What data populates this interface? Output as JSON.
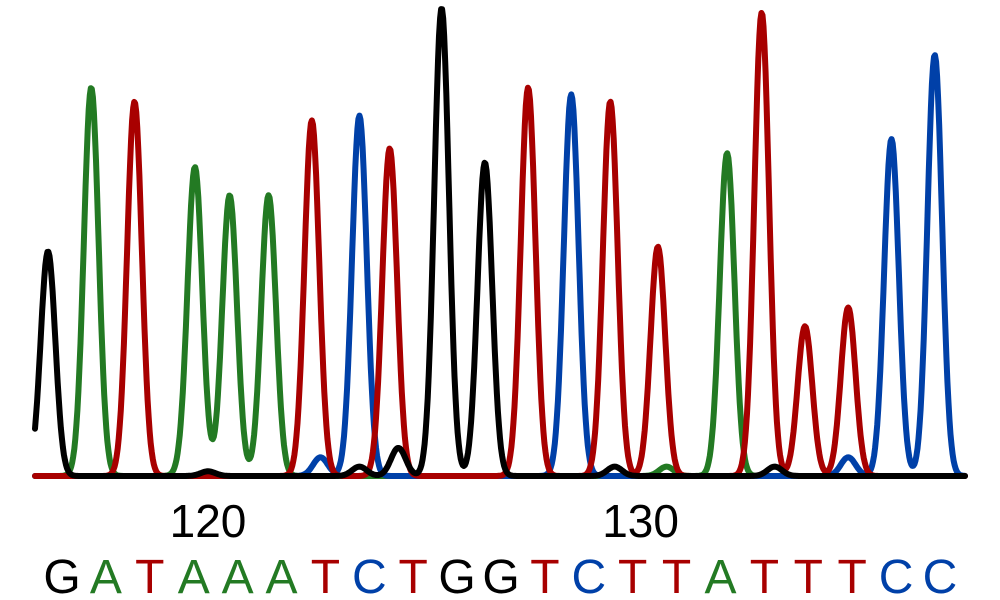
{
  "chart_data": {
    "type": "line",
    "title": "",
    "xlabel": "",
    "ylabel": "",
    "x_ticks": [
      {
        "position": 120,
        "label": "120"
      },
      {
        "position": 130,
        "label": "130"
      }
    ],
    "bases": [
      {
        "base": "G",
        "channel": "G"
      },
      {
        "base": "A",
        "channel": "A"
      },
      {
        "base": "T",
        "channel": "T"
      },
      {
        "base": "A",
        "channel": "A"
      },
      {
        "base": "A",
        "channel": "A"
      },
      {
        "base": "A",
        "channel": "A"
      },
      {
        "base": "T",
        "channel": "T"
      },
      {
        "base": "C",
        "channel": "C"
      },
      {
        "base": "T",
        "channel": "T"
      },
      {
        "base": "G",
        "channel": "G"
      },
      {
        "base": "G",
        "channel": "G"
      },
      {
        "base": "T",
        "channel": "T"
      },
      {
        "base": "C",
        "channel": "C"
      },
      {
        "base": "T",
        "channel": "T"
      },
      {
        "base": "T",
        "channel": "T"
      },
      {
        "base": "A",
        "channel": "A"
      },
      {
        "base": "T",
        "channel": "T"
      },
      {
        "base": "T",
        "channel": "T"
      },
      {
        "base": "T",
        "channel": "T"
      },
      {
        "base": "C",
        "channel": "C"
      },
      {
        "base": "C",
        "channel": "C"
      }
    ],
    "channel_colors": {
      "A": "#237a23",
      "C": "#0040a8",
      "G": "#000000",
      "T": "#a80000"
    },
    "series": [
      {
        "channel": "G",
        "peaks": [
          {
            "x": 116.3,
            "y": 0.48
          },
          {
            "x": 120.0,
            "y": 0.01
          },
          {
            "x": 123.5,
            "y": 0.02
          },
          {
            "x": 124.4,
            "y": 0.06
          },
          {
            "x": 125.4,
            "y": 1.0
          },
          {
            "x": 126.4,
            "y": 0.67
          },
          {
            "x": 129.4,
            "y": 0.02
          },
          {
            "x": 133.1,
            "y": 0.02
          }
        ]
      },
      {
        "channel": "A",
        "peaks": [
          {
            "x": 117.3,
            "y": 0.83
          },
          {
            "x": 119.5,
            "y": 0.02
          },
          {
            "x": 119.7,
            "y": 0.65
          },
          {
            "x": 120.5,
            "y": 0.6
          },
          {
            "x": 121.4,
            "y": 0.6
          },
          {
            "x": 130.6,
            "y": 0.02
          },
          {
            "x": 132.0,
            "y": 0.69
          }
        ]
      },
      {
        "channel": "T",
        "peaks": [
          {
            "x": 118.3,
            "y": 0.8
          },
          {
            "x": 122.4,
            "y": 0.76
          },
          {
            "x": 124.2,
            "y": 0.7
          },
          {
            "x": 127.4,
            "y": 0.83
          },
          {
            "x": 129.3,
            "y": 0.8
          },
          {
            "x": 130.4,
            "y": 0.49
          },
          {
            "x": 132.8,
            "y": 0.99
          },
          {
            "x": 133.8,
            "y": 0.32
          },
          {
            "x": 134.8,
            "y": 0.36
          }
        ]
      },
      {
        "channel": "C",
        "peaks": [
          {
            "x": 122.6,
            "y": 0.04
          },
          {
            "x": 123.5,
            "y": 0.77
          },
          {
            "x": 128.3,
            "y": 0.03
          },
          {
            "x": 128.4,
            "y": 0.79
          },
          {
            "x": 134.8,
            "y": 0.04
          },
          {
            "x": 135.8,
            "y": 0.72
          },
          {
            "x": 136.8,
            "y": 0.9
          }
        ]
      }
    ]
  }
}
